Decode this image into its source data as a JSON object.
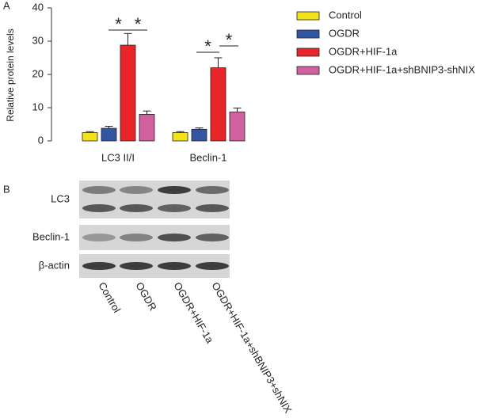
{
  "panels": [
    "A",
    "B"
  ],
  "chart_data": {
    "type": "bar",
    "ylabel": "Relative protein levels",
    "categories": [
      "LC3 II/I",
      "Beclin-1"
    ],
    "series": [
      {
        "name": "Control",
        "color": "#f2e21a",
        "values": [
          2.5,
          2.5
        ],
        "errors": [
          0.3,
          0.3
        ]
      },
      {
        "name": "OGDR",
        "color": "#3255a4",
        "values": [
          3.8,
          3.5
        ],
        "errors": [
          0.6,
          0.4
        ]
      },
      {
        "name": "OGDR+HIF-1a",
        "color": "#e8262a",
        "values": [
          28.8,
          22
        ],
        "errors": [
          3.5,
          3
        ]
      },
      {
        "name": "OGDR+HIF-1a+shBNIP3-shNIX",
        "color": "#d0609f",
        "values": [
          8,
          8.7
        ],
        "errors": [
          1,
          1.2
        ]
      }
    ],
    "ylim": [
      0,
      40
    ],
    "yticks": [
      0,
      10,
      20,
      30,
      40
    ],
    "annotations": [
      "*",
      "*",
      "*",
      "*"
    ]
  },
  "blot": {
    "rows": [
      "LC3",
      "Beclin-1",
      "β-actin"
    ],
    "lanes": [
      "Control",
      "OGDR",
      "OGDR+HIF-1a",
      "OGDR+HIF-1a+shBNIP3+shNIX"
    ]
  }
}
